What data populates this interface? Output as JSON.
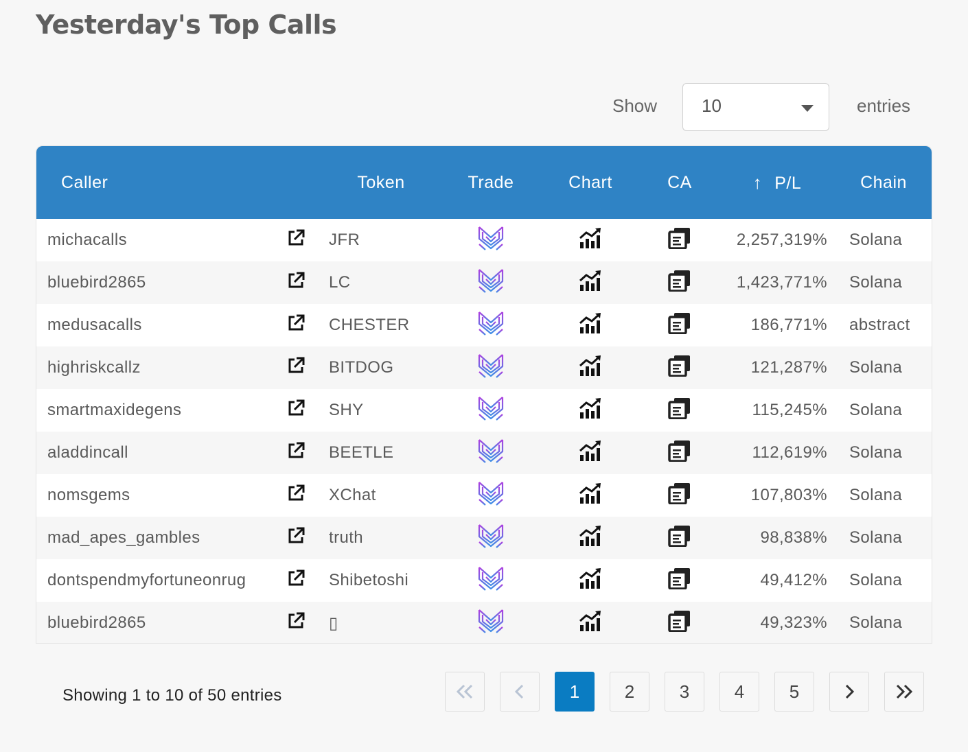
{
  "page": {
    "title": "Yesterday's Top Calls"
  },
  "length_control": {
    "show_label": "Show",
    "selected": "10",
    "entries_label": "entries"
  },
  "table": {
    "columns": [
      "Caller",
      "",
      "Token",
      "Trade",
      "Chart",
      "CA",
      "P/L",
      "Chain"
    ],
    "sorted_column": "P/L",
    "sort_direction": "descending",
    "rows": [
      {
        "caller": "michacalls",
        "token": "JFR",
        "pl": "2,257,319%",
        "chain": "Solana"
      },
      {
        "caller": "bluebird2865",
        "token": "LC",
        "pl": "1,423,771%",
        "chain": "Solana"
      },
      {
        "caller": "medusacalls",
        "token": "CHESTER",
        "pl": "186,771%",
        "chain": "abstract"
      },
      {
        "caller": "highriskcallz",
        "token": "BITDOG",
        "pl": "121,287%",
        "chain": "Solana"
      },
      {
        "caller": "smartmaxidegens",
        "token": "SHY",
        "pl": "115,245%",
        "chain": "Solana"
      },
      {
        "caller": "aladdincall",
        "token": "BEETLE",
        "pl": "112,619%",
        "chain": "Solana"
      },
      {
        "caller": "nomsgems",
        "token": "XChat",
        "pl": "107,803%",
        "chain": "Solana"
      },
      {
        "caller": "mad_apes_gambles",
        "token": "truth",
        "pl": "98,838%",
        "chain": "Solana"
      },
      {
        "caller": "dontspendmyfortuneonrug",
        "token": "Shibetoshi",
        "pl": "49,412%",
        "chain": "Solana"
      },
      {
        "caller": "bluebird2865",
        "token": "▯",
        "pl": "49,323%",
        "chain": "Solana"
      }
    ],
    "row_icons": {
      "link": "external-link-icon",
      "trade": "trade-logo-icon",
      "chart": "chart-growth-icon",
      "ca": "copy-address-icon"
    }
  },
  "footer": {
    "info": "Showing 1 to 10 of 50 entries"
  },
  "pagination": {
    "first": "«",
    "prev": "‹",
    "pages": [
      "1",
      "2",
      "3",
      "4",
      "5"
    ],
    "current": "1",
    "next": "›",
    "last": "»"
  },
  "colors": {
    "header_bg": "#2f83c5",
    "active_page": "#0a7cc2",
    "trade_icon_gradient": [
      "#b03fe0",
      "#3e8ee6"
    ]
  }
}
